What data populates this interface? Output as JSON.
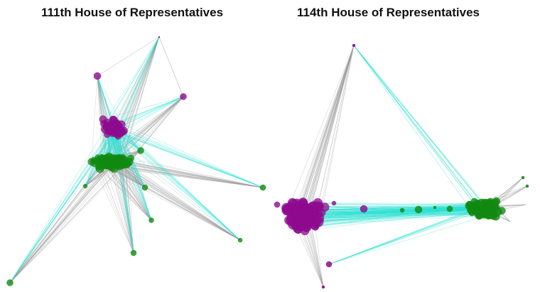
{
  "panels": [
    {
      "id": "left",
      "title": "111th House of Representatives"
    },
    {
      "id": "right",
      "title": "114th House of Representatives"
    }
  ],
  "colors": {
    "republican_nodes": "#8e0a8e",
    "democrat_nodes": "#118a11",
    "cross_party_edges": "#26e0d0",
    "within_party_edges": "#9a9a9a",
    "background": "#ffffff"
  }
}
